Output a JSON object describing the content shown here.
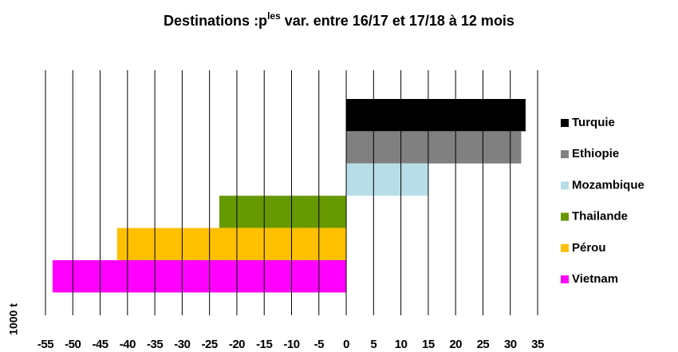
{
  "chart_data": {
    "type": "bar",
    "orientation": "horizontal",
    "title": "Destinations :p",
    "title_superscript": "les",
    "title_end": " var. entre 16/17 et 17/18 à 12 mois",
    "xlabel": "1000 t",
    "series": [
      {
        "name": "Turquie",
        "color": "#000000",
        "values": [
          32.8
        ]
      },
      {
        "name": "Ethiopie",
        "color": "#808080",
        "values": [
          32.0
        ]
      },
      {
        "name": "Mozambique",
        "color": "#b7dee8",
        "values": [
          15.0
        ]
      },
      {
        "name": "Thailande",
        "color": "#669900",
        "values": [
          -23.2
        ]
      },
      {
        "name": "Pérou",
        "color": "#ffc000",
        "values": [
          -41.9
        ]
      },
      {
        "name": "Vietnam",
        "color": "#ff00ff",
        "values": [
          -53.7
        ]
      }
    ],
    "xlim": [
      -55,
      35
    ],
    "xticks": [
      -55,
      -50,
      -45,
      -40,
      -35,
      -30,
      -25,
      -20,
      -15,
      -10,
      -5,
      0,
      5,
      10,
      15,
      20,
      25,
      30,
      35
    ],
    "grid": true,
    "legend": "right"
  }
}
